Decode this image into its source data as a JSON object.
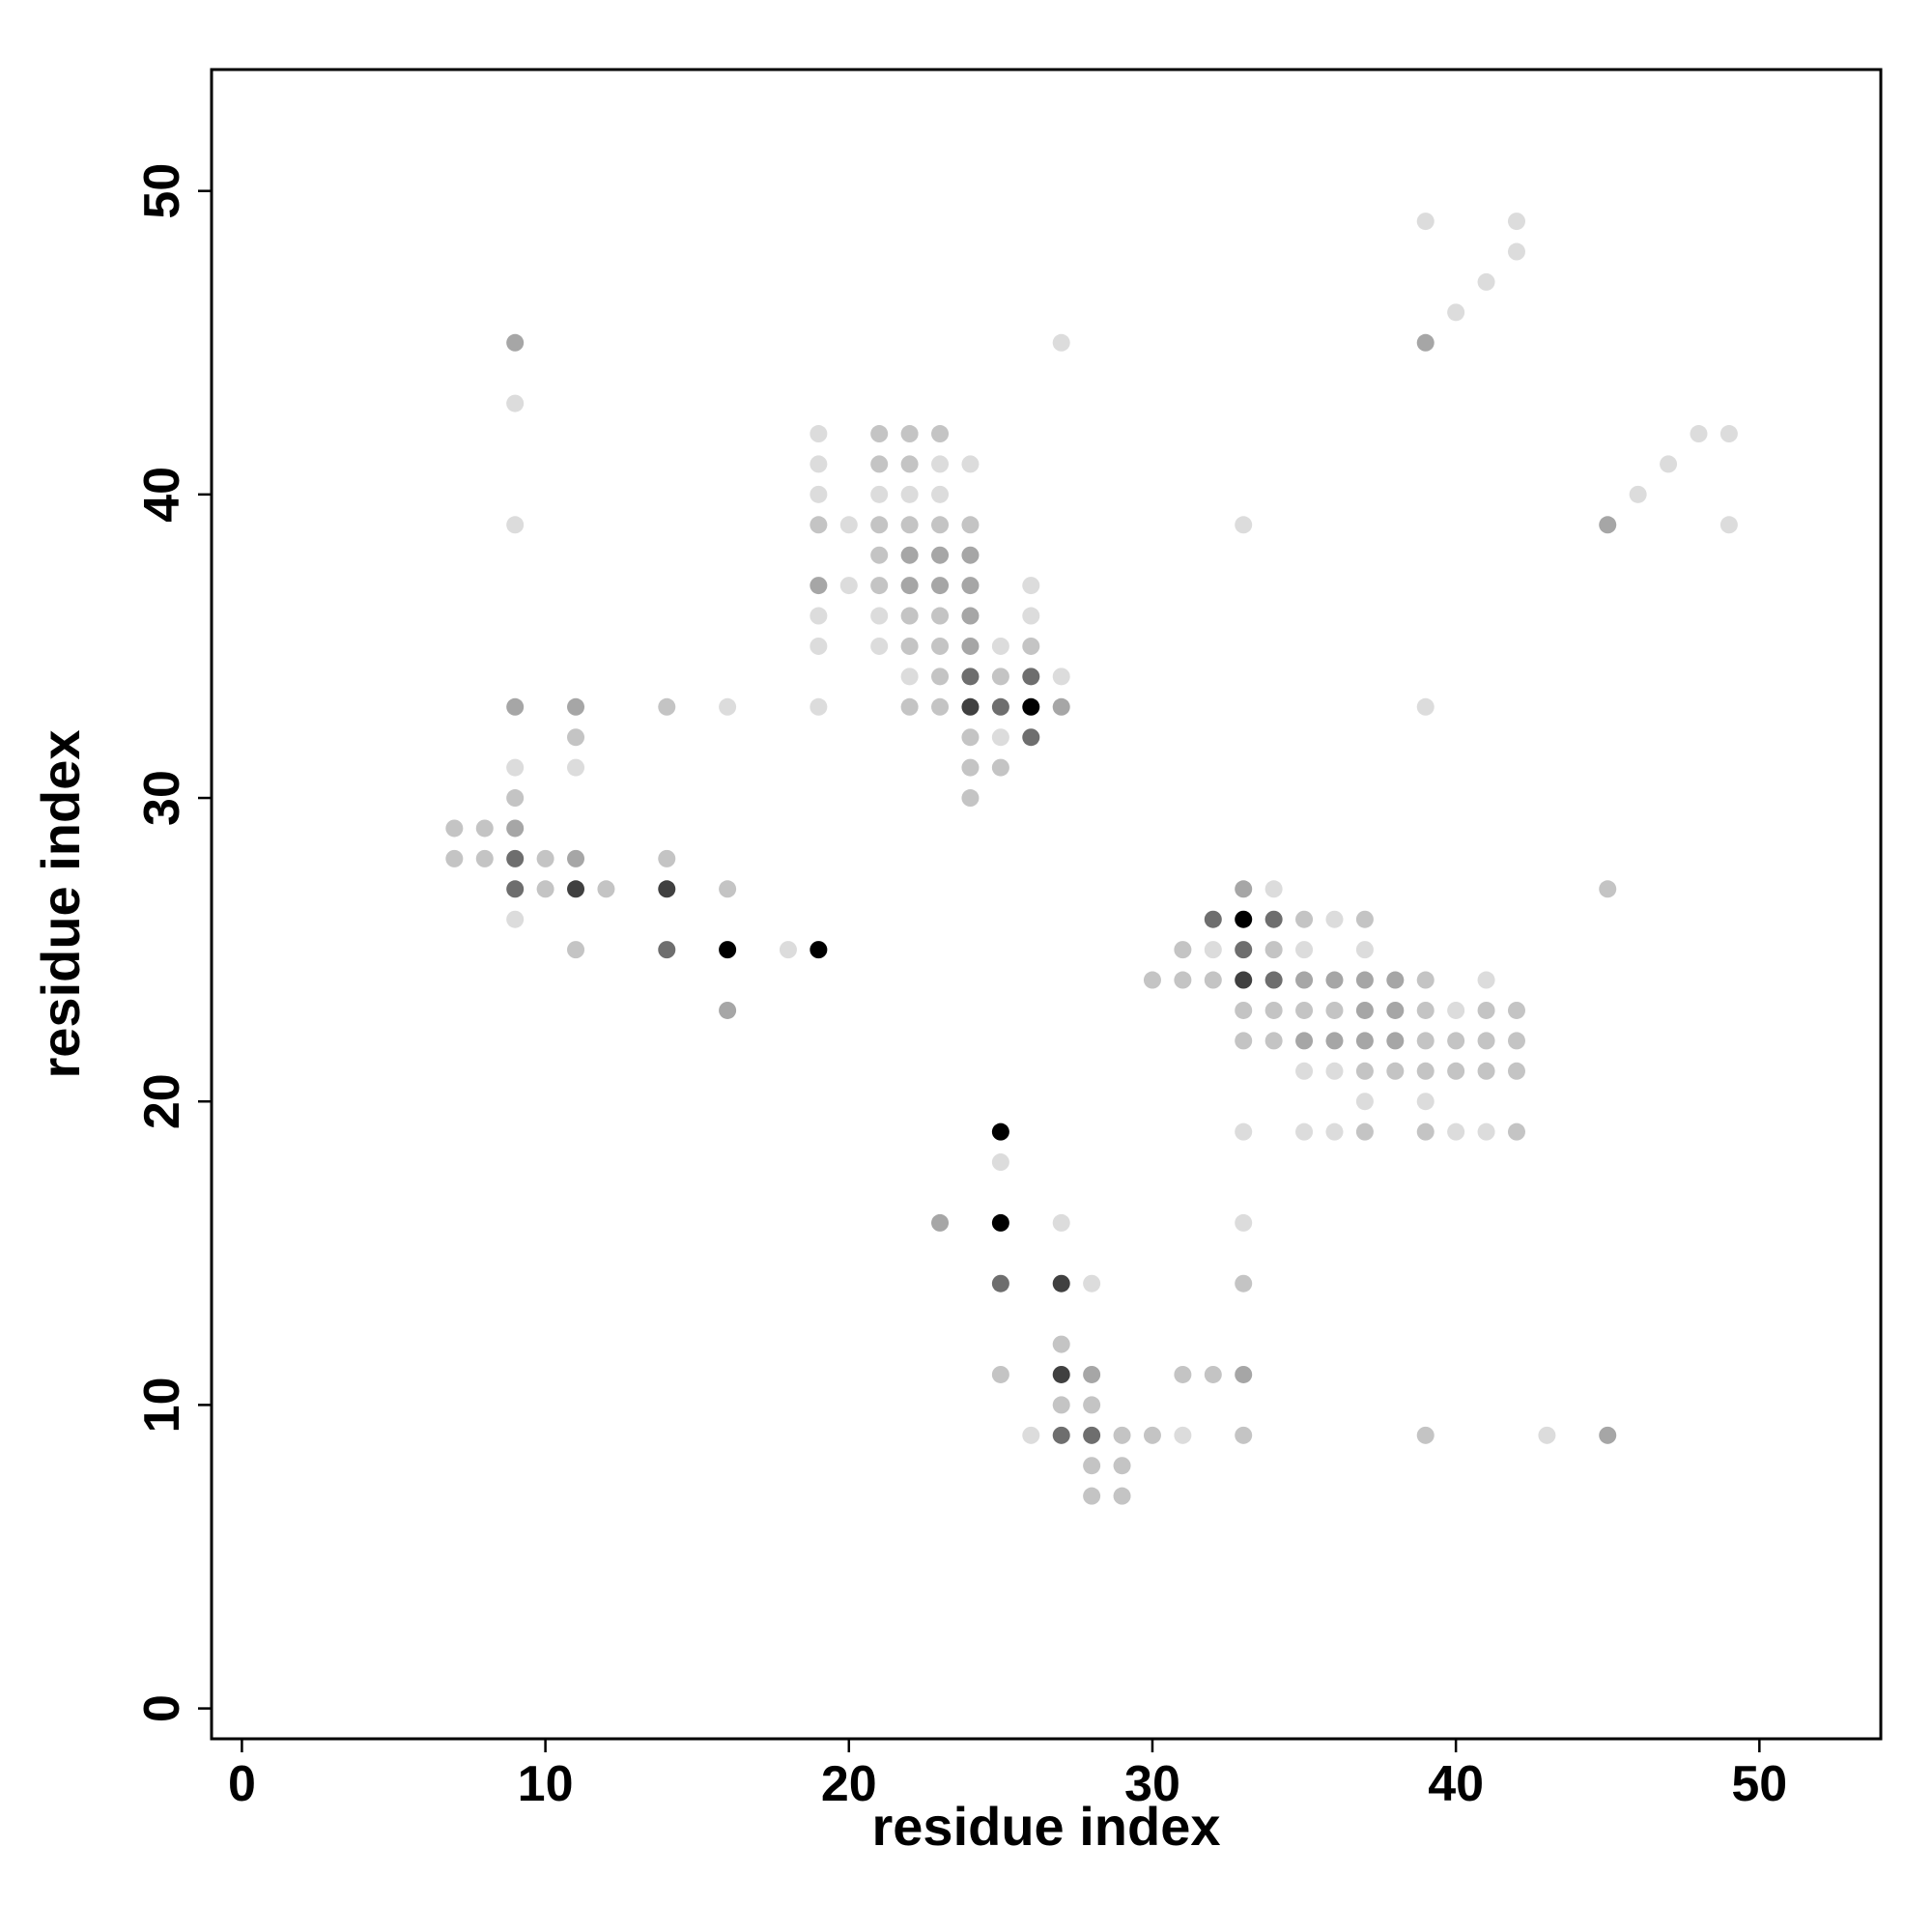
{
  "chart_data": {
    "type": "scatter",
    "x_label": "residue index",
    "y_label": "residue index",
    "xlim": [
      -1,
      54
    ],
    "ylim": [
      -1,
      54
    ],
    "xticks": [
      0,
      10,
      20,
      30,
      40,
      50
    ],
    "yticks": [
      0,
      10,
      20,
      30,
      40,
      50
    ],
    "series": [
      {
        "color": "#dcdcdc",
        "x": [
          39,
          42,
          42,
          41,
          40,
          27,
          9,
          19,
          48,
          49,
          19,
          23,
          24,
          47,
          19,
          21,
          22,
          23,
          46,
          9,
          20,
          33,
          49,
          20,
          26,
          19,
          21,
          26,
          19,
          21,
          25,
          22,
          27,
          16,
          19,
          39,
          25,
          9,
          11,
          34,
          9,
          36,
          18,
          32,
          35,
          37,
          41,
          40,
          35,
          36,
          37,
          39,
          33,
          35,
          36,
          40,
          41,
          25,
          27,
          33,
          28,
          26,
          31,
          43
        ],
        "y": [
          49,
          49,
          48,
          47,
          46,
          45,
          43,
          42,
          42,
          42,
          41,
          41,
          41,
          41,
          40,
          40,
          40,
          40,
          40,
          39,
          39,
          39,
          39,
          37,
          37,
          36,
          36,
          36,
          35,
          35,
          35,
          34,
          34,
          33,
          33,
          33,
          32,
          31,
          31,
          27,
          26,
          26,
          25,
          25,
          25,
          25,
          24,
          23,
          21,
          21,
          20,
          20,
          19,
          19,
          19,
          19,
          19,
          18,
          16,
          16,
          14,
          9,
          9,
          9
        ]
      },
      {
        "color": "#c4c4c4",
        "x": [
          21,
          22,
          23,
          21,
          22,
          19,
          21,
          22,
          23,
          24,
          21,
          21,
          22,
          23,
          22,
          23,
          26,
          23,
          25,
          14,
          22,
          23,
          11,
          24,
          24,
          25,
          9,
          24,
          7,
          8,
          7,
          8,
          10,
          14,
          10,
          12,
          16,
          45,
          35,
          37,
          11,
          31,
          34,
          30,
          31,
          32,
          39,
          33,
          34,
          35,
          36,
          39,
          41,
          42,
          33,
          34,
          39,
          40,
          41,
          42,
          37,
          38,
          39,
          40,
          41,
          42,
          37,
          39,
          42,
          33,
          27,
          25,
          31,
          32,
          27,
          28,
          29,
          30,
          33,
          39,
          28,
          29,
          28,
          29
        ],
        "y": [
          42,
          42,
          42,
          41,
          41,
          39,
          39,
          39,
          39,
          39,
          38,
          37,
          36,
          36,
          35,
          35,
          35,
          34,
          34,
          33,
          33,
          33,
          32,
          32,
          31,
          31,
          30,
          30,
          29,
          29,
          28,
          28,
          28,
          28,
          27,
          27,
          27,
          27,
          26,
          26,
          25,
          25,
          25,
          24,
          24,
          24,
          24,
          23,
          23,
          23,
          23,
          23,
          23,
          23,
          22,
          22,
          22,
          22,
          22,
          22,
          21,
          21,
          21,
          21,
          21,
          21,
          19,
          19,
          19,
          14,
          12,
          11,
          11,
          11,
          10,
          10,
          9,
          9,
          9,
          9,
          8,
          8,
          7,
          7
        ]
      },
      {
        "color": "#a6a6a6",
        "x": [
          9,
          39,
          45,
          22,
          23,
          24,
          19,
          22,
          23,
          24,
          24,
          24,
          9,
          11,
          27,
          9,
          11,
          33,
          35,
          36,
          37,
          38,
          16,
          37,
          38,
          35,
          36,
          37,
          38,
          23,
          28,
          33,
          45
        ],
        "y": [
          45,
          45,
          39,
          38,
          38,
          38,
          37,
          37,
          37,
          37,
          36,
          35,
          33,
          33,
          33,
          29,
          28,
          27,
          24,
          24,
          24,
          24,
          23,
          23,
          23,
          22,
          22,
          22,
          22,
          16,
          11,
          11,
          9
        ]
      },
      {
        "color": "#6e6e6e",
        "x": [
          24,
          26,
          25,
          26,
          9,
          9,
          32,
          34,
          14,
          33,
          34,
          25,
          27,
          28
        ],
        "y": [
          34,
          34,
          33,
          32,
          28,
          27,
          26,
          26,
          25,
          25,
          24,
          14,
          9,
          9
        ]
      },
      {
        "color": "#404040",
        "x": [
          24,
          11,
          14,
          33,
          27,
          27
        ],
        "y": [
          33,
          27,
          27,
          24,
          14,
          11
        ]
      },
      {
        "color": "#000000",
        "x": [
          26,
          33,
          16,
          19,
          25,
          25
        ],
        "y": [
          33,
          26,
          25,
          25,
          19,
          16
        ]
      }
    ]
  }
}
